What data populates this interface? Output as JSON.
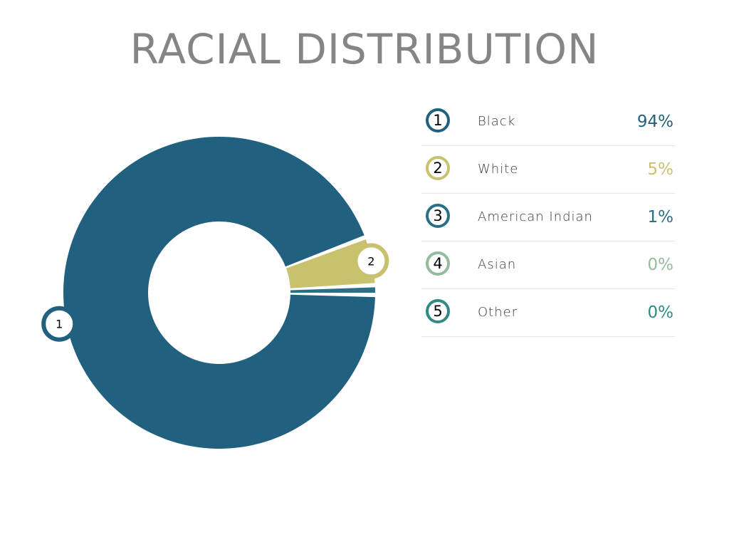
{
  "title": "RACIAL DISTRIBUTION",
  "chart_data": {
    "type": "pie",
    "title": "RACIAL DISTRIBUTION",
    "categories": [
      "Black",
      "White",
      "American Indian",
      "Asian",
      "Other"
    ],
    "values": [
      94,
      5,
      1,
      0,
      0
    ],
    "value_labels": [
      "94%",
      "5%",
      "1%",
      "0%",
      "0%"
    ],
    "numbers": [
      "1",
      "2",
      "3",
      "4",
      "5"
    ],
    "colors": [
      "#21617f",
      "#c8c26f",
      "#2a6f86",
      "#94bb9c",
      "#2f8b82"
    ],
    "style": "donut",
    "legend_position": "right",
    "slice_markers": [
      "1",
      "2"
    ]
  }
}
